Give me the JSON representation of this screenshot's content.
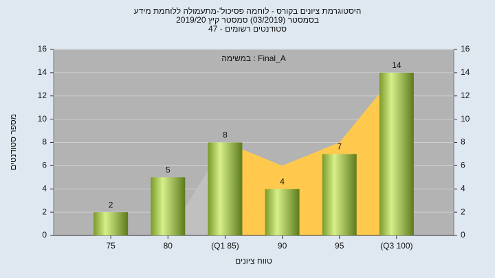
{
  "chart_data": {
    "type": "bar",
    "title": "היסטוגרמת ציונים בקורס - לוחמה פסיכול'-מתעמולה ללוחמת מידע",
    "subtitle": "בסמסטר  (03/2019)  סמסטר קיץ 2019/20",
    "subtitle2": "סטודנטים רשומים - 47",
    "annotation": "במשימה : Final_A",
    "ylabel": "מספר סטודנטים",
    "xlabel": "טווח ציונים",
    "categories": [
      "75",
      "80",
      "(Q1 85)",
      "90",
      "95",
      "(Q3 100)"
    ],
    "values": [
      2,
      5,
      8,
      4,
      7,
      14
    ],
    "color": "#9dc43c",
    "areas": [
      {
        "color": "#c0c0c0",
        "values": [
          null,
          0,
          8,
          null,
          null,
          null
        ]
      },
      {
        "color": "#ffc94d",
        "values": [
          null,
          null,
          8,
          6,
          8,
          14
        ]
      }
    ],
    "ylim": [
      0,
      16
    ],
    "yticks": [
      0,
      2,
      4,
      6,
      8,
      10,
      12,
      14,
      16
    ],
    "grid": true
  }
}
